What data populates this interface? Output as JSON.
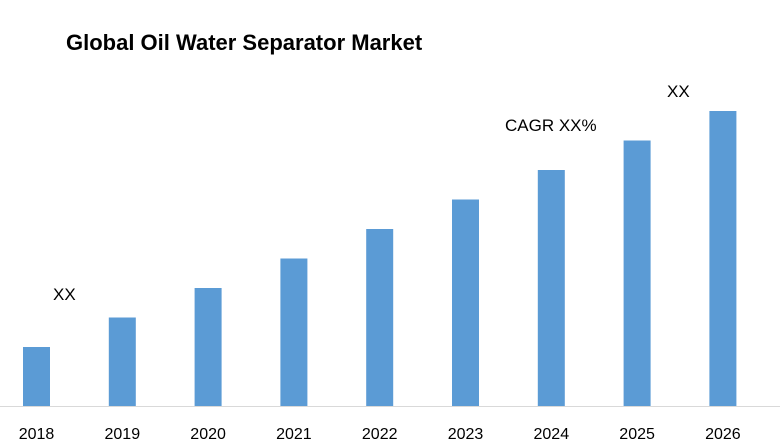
{
  "chart_data": {
    "type": "bar",
    "title": "Global Oil Water Separator Market",
    "categories": [
      "2018",
      "2019",
      "2020",
      "2021",
      "2022",
      "2023",
      "2024",
      "2025",
      "2026"
    ],
    "values": [
      2,
      3,
      4,
      5,
      6,
      7,
      8,
      9,
      10
    ],
    "xlabel": "",
    "ylabel": "",
    "ylim": [
      0,
      10
    ],
    "grid": false,
    "bar_color": "#5B9BD5",
    "annotations": [
      {
        "text": "XX",
        "near": "2018"
      },
      {
        "text": "CAGR XX%",
        "near": "2024"
      },
      {
        "text": "XX",
        "near": "2026"
      }
    ]
  }
}
